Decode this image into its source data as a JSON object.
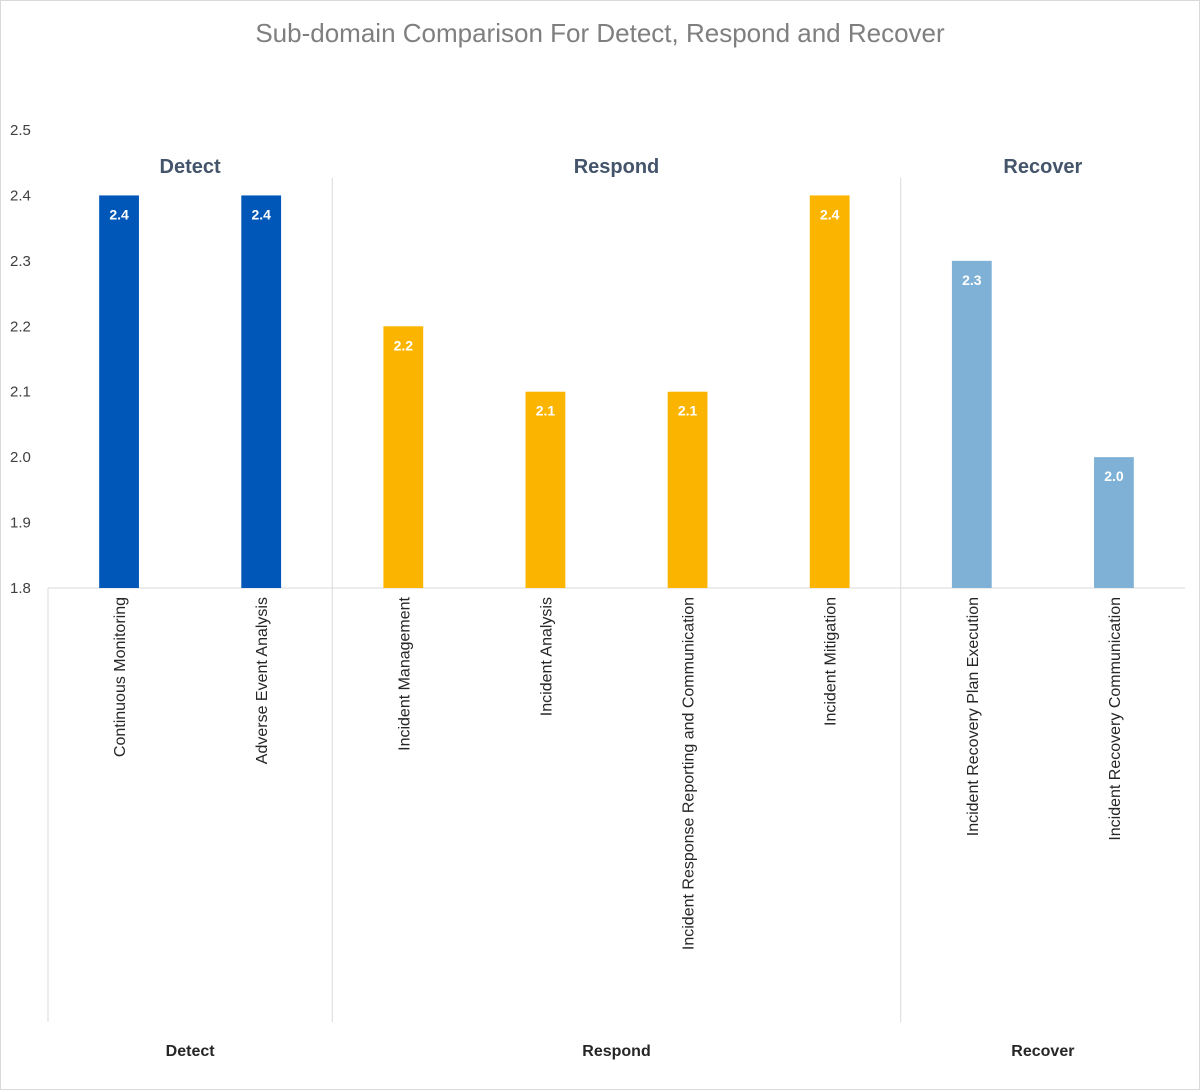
{
  "chart_data": {
    "type": "bar",
    "title": "Sub-domain Comparison For Detect, Respond and Recover",
    "xlabel": "",
    "ylabel": "",
    "ylim": [
      1.8,
      2.5
    ],
    "yticks": [
      "1.8",
      "1.9",
      "2.0",
      "2.1",
      "2.2",
      "2.3",
      "2.4",
      "2.5"
    ],
    "grid": false,
    "legend": "none",
    "groups": [
      {
        "name": "Detect",
        "color": "#0057b8",
        "categories": [
          "Continuous Monitoring",
          "Adverse Event Analysis"
        ],
        "values": [
          2.4,
          2.4
        ],
        "labels": [
          "2.4",
          "2.4"
        ]
      },
      {
        "name": "Respond",
        "color": "#fbb500",
        "categories": [
          "Incident Management",
          "Incident Analysis",
          "Incident Response Reporting and Communication",
          "Incident Mitigation"
        ],
        "values": [
          2.2,
          2.1,
          2.1,
          2.4
        ],
        "labels": [
          "2.2",
          "2.1",
          "2.1",
          "2.4"
        ]
      },
      {
        "name": "Recover",
        "color": "#7fb1d6",
        "categories": [
          "Incident Recovery Plan Execution",
          "Incident Recovery Communication"
        ],
        "values": [
          2.3,
          2.0
        ],
        "labels": [
          "2.3",
          "2.0"
        ]
      }
    ]
  }
}
